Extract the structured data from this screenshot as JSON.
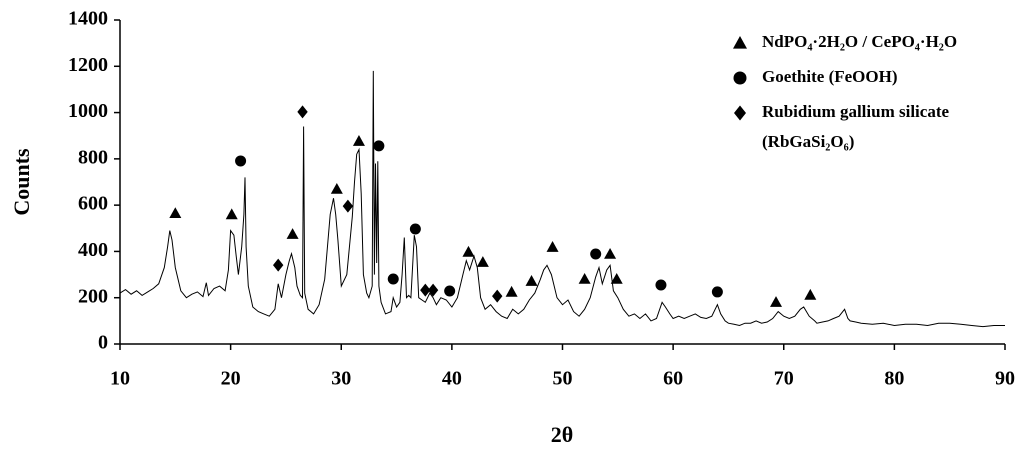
{
  "chart_data": {
    "type": "line",
    "xlabel": "2θ",
    "ylabel": "Counts",
    "xlim": [
      10,
      90
    ],
    "ylim": [
      0,
      1400
    ],
    "xticks": [
      10,
      20,
      30,
      40,
      50,
      60,
      70,
      80,
      90
    ],
    "yticks": [
      0,
      200,
      400,
      600,
      800,
      1000,
      1200,
      1400
    ],
    "line": {
      "color": "#000000",
      "x": [
        10,
        10.5,
        11,
        11.5,
        12,
        12.5,
        13,
        13.5,
        14,
        14.3,
        14.5,
        14.7,
        15,
        15.5,
        16,
        16.5,
        17,
        17.5,
        17.8,
        18,
        18.5,
        19,
        19.5,
        19.8,
        20,
        20.3,
        20.5,
        20.7,
        21,
        21.2,
        21.3,
        21.4,
        21.6,
        22,
        22.5,
        23,
        23.5,
        24,
        24.3,
        24.6,
        25,
        25.3,
        25.5,
        25.8,
        26,
        26.3,
        26.5,
        26.6,
        26.7,
        27,
        27.5,
        28,
        28.5,
        29,
        29.3,
        29.5,
        29.7,
        30,
        30.5,
        31,
        31.2,
        31.4,
        31.6,
        31.8,
        32,
        32.3,
        32.5,
        32.8,
        32.9,
        33,
        33.1,
        33.2,
        33.3,
        33.4,
        33.6,
        34,
        34.5,
        34.7,
        35,
        35.3,
        35.5,
        35.7,
        35.9,
        36.1,
        36.3,
        36.6,
        36.8,
        37,
        37.3,
        37.6,
        38,
        38.3,
        38.6,
        39,
        39.5,
        40,
        40.5,
        41,
        41.3,
        41.6,
        42,
        42.3,
        42.6,
        43,
        43.5,
        44,
        44.5,
        45,
        45.5,
        46,
        46.5,
        47,
        47.5,
        48,
        48.3,
        48.6,
        49,
        49.5,
        50,
        50.5,
        51,
        51.5,
        52,
        52.5,
        53,
        53.3,
        53.6,
        54,
        54.3,
        54.6,
        55,
        55.5,
        56,
        56.5,
        57,
        57.5,
        58,
        58.5,
        59,
        59.3,
        59.7,
        60,
        60.5,
        61,
        61.5,
        62,
        62.5,
        63,
        63.5,
        64,
        64.3,
        64.7,
        65,
        65.5,
        66,
        66.5,
        67,
        67.5,
        68,
        68.5,
        69,
        69.5,
        70,
        70.5,
        71,
        71.5,
        71.8,
        72.3,
        72.8,
        73,
        73.5,
        74,
        74.5,
        75,
        75.5,
        75.8,
        76,
        76.5,
        77,
        78,
        79,
        80,
        81,
        82,
        83,
        84,
        85,
        86,
        87,
        88,
        89,
        90
      ],
      "y": [
        220,
        235,
        215,
        230,
        210,
        225,
        240,
        260,
        330,
        420,
        490,
        450,
        330,
        230,
        200,
        215,
        225,
        205,
        265,
        210,
        240,
        250,
        230,
        320,
        490,
        470,
        380,
        300,
        420,
        560,
        720,
        420,
        250,
        160,
        140,
        130,
        120,
        150,
        260,
        200,
        300,
        360,
        390,
        330,
        250,
        210,
        200,
        940,
        220,
        150,
        130,
        170,
        280,
        560,
        630,
        560,
        450,
        250,
        300,
        550,
        700,
        820,
        840,
        650,
        300,
        220,
        200,
        250,
        1180,
        300,
        780,
        350,
        790,
        250,
        180,
        130,
        140,
        200,
        160,
        180,
        300,
        460,
        200,
        210,
        200,
        470,
        420,
        200,
        190,
        180,
        220,
        200,
        170,
        200,
        190,
        160,
        200,
        300,
        360,
        320,
        380,
        330,
        200,
        150,
        170,
        140,
        120,
        110,
        150,
        130,
        150,
        190,
        220,
        280,
        320,
        340,
        300,
        200,
        170,
        190,
        140,
        120,
        150,
        200,
        290,
        330,
        260,
        320,
        340,
        230,
        200,
        150,
        120,
        130,
        110,
        130,
        100,
        110,
        180,
        160,
        130,
        110,
        120,
        110,
        120,
        130,
        115,
        110,
        120,
        170,
        130,
        100,
        90,
        85,
        80,
        90,
        90,
        100,
        90,
        95,
        110,
        140,
        120,
        110,
        120,
        150,
        160,
        120,
        100,
        90,
        95,
        100,
        110,
        120,
        150,
        110,
        100,
        95,
        90,
        85,
        90,
        80,
        85,
        85,
        80,
        90,
        90,
        85,
        80,
        75,
        80,
        80
      ]
    },
    "markers": [
      {
        "label_lines": [
          "NdPO₄·2H₂O / CePO₄·H₂O"
        ],
        "shape": "triangle",
        "x": [
          15,
          20.1,
          25.6,
          29.6,
          31.6,
          41.5,
          42.8,
          45.4,
          47.2,
          49.1,
          52,
          54.3,
          54.9,
          69.3,
          72.4
        ],
        "y": [
          565,
          560,
          475,
          670,
          877,
          398,
          354,
          225,
          272,
          419,
          281,
          389,
          281,
          181,
          212
        ]
      },
      {
        "label_lines": [
          "Goethite (FeOOH)"
        ],
        "shape": "circle",
        "x": [
          20.9,
          33.4,
          34.7,
          36.7,
          39.8,
          53,
          58.9,
          64
        ],
        "y": [
          791,
          856,
          281,
          497,
          229,
          389,
          255,
          225
        ]
      },
      {
        "label_lines": [
          "Rubidium gallium silicate",
          "(RbGaSi₂O₆)"
        ],
        "shape": "diamond",
        "x": [
          24.3,
          26.5,
          30.6,
          37.6,
          38.3,
          44.1
        ],
        "y": [
          341,
          1003,
          596,
          233,
          233,
          207
        ]
      }
    ]
  }
}
